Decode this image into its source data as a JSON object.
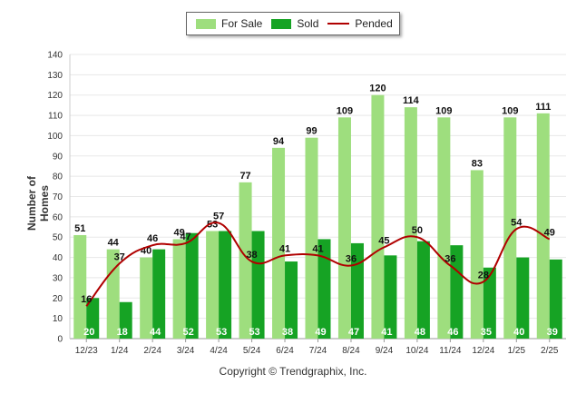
{
  "legend": [
    {
      "name": "For Sale",
      "color": "#9ede7e",
      "kind": "bar"
    },
    {
      "name": "Sold",
      "color": "#16a324",
      "kind": "bar"
    },
    {
      "name": "Pended",
      "color": "#b00000",
      "kind": "line"
    }
  ],
  "copyright": "Copyright © Trendgraphix, Inc.",
  "chart_data": {
    "type": "bar",
    "title": "",
    "xlabel": "",
    "ylabel": "Number of Homes",
    "ylim": [
      0,
      140
    ],
    "yticks": [
      0,
      10,
      20,
      30,
      40,
      50,
      60,
      70,
      80,
      90,
      100,
      110,
      120,
      130,
      140
    ],
    "grid": true,
    "legend_position": "top",
    "categories": [
      "12/23",
      "1/24",
      "2/24",
      "3/24",
      "4/24",
      "5/24",
      "6/24",
      "7/24",
      "8/24",
      "9/24",
      "10/24",
      "11/24",
      "12/24",
      "1/25",
      "2/25"
    ],
    "series": [
      {
        "name": "For Sale",
        "type": "bar",
        "color": "#9ede7e",
        "values": [
          51,
          44,
          40,
          49,
          53,
          77,
          94,
          99,
          109,
          120,
          114,
          109,
          83,
          109,
          111
        ]
      },
      {
        "name": "Sold",
        "type": "bar",
        "color": "#16a324",
        "values": [
          20,
          18,
          44,
          52,
          53,
          53,
          38,
          49,
          47,
          41,
          48,
          46,
          35,
          40,
          39
        ]
      },
      {
        "name": "Pended",
        "type": "line",
        "color": "#b00000",
        "values": [
          16,
          37,
          46,
          47,
          57,
          38,
          41,
          41,
          36,
          45,
          50,
          36,
          28,
          54,
          49
        ]
      }
    ]
  }
}
